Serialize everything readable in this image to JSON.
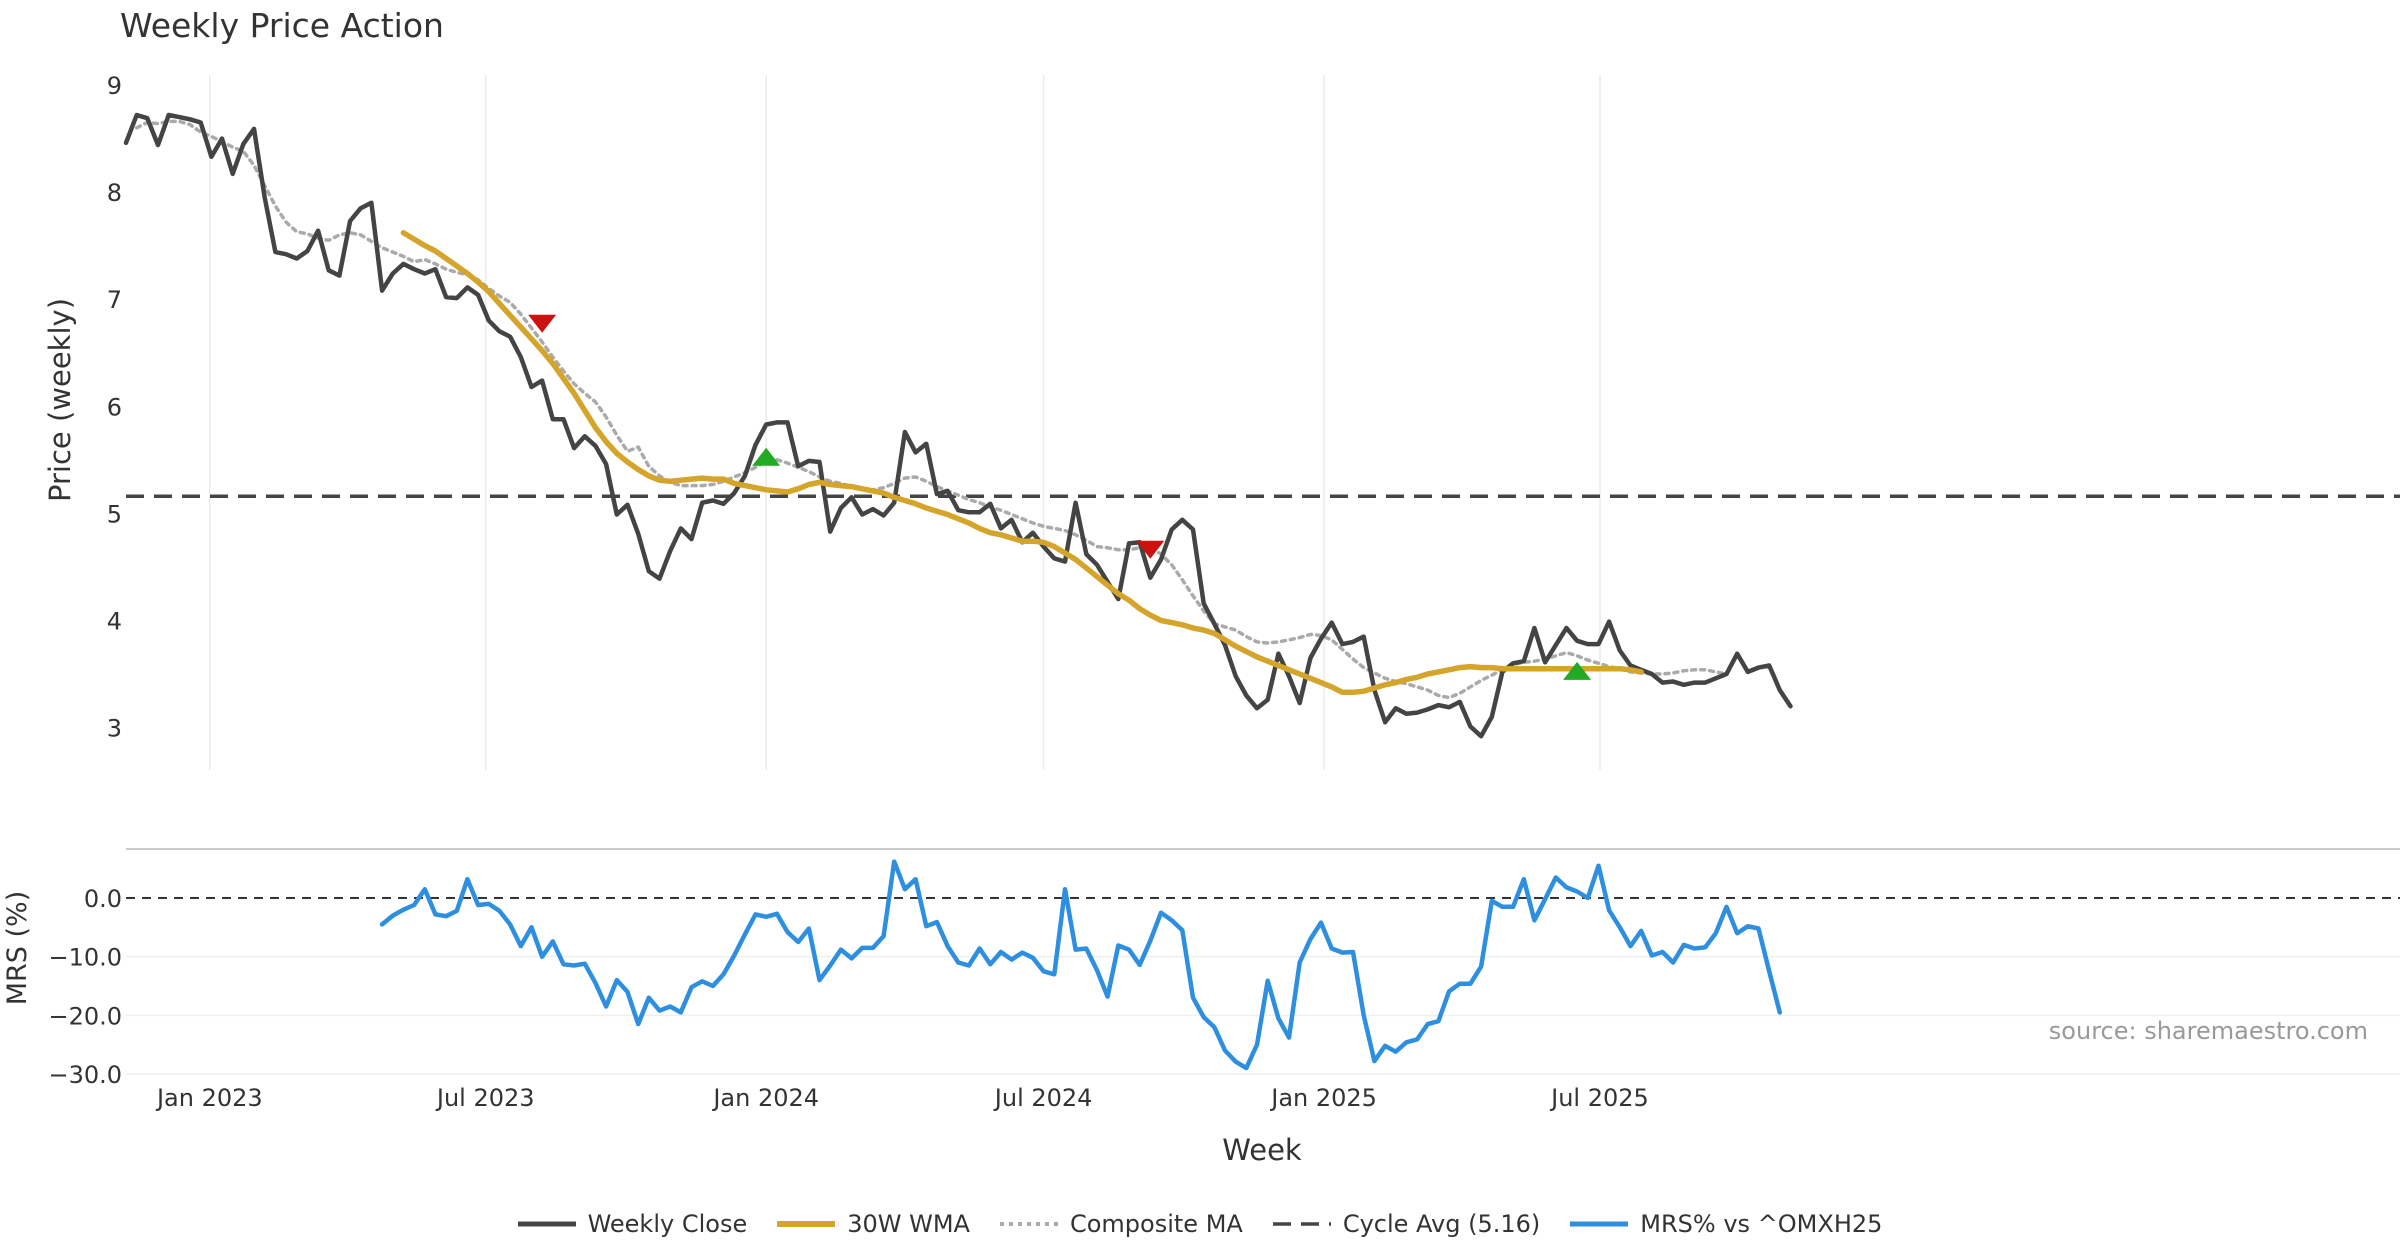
{
  "chart_data": [
    {
      "type": "line",
      "title": "Weekly Price Action",
      "ylabel": "Price (weekly)",
      "ylim": [
        2.55,
        9.0
      ],
      "yticks": [
        3,
        4,
        5,
        6,
        7,
        8,
        9
      ],
      "cycle_avg": 5.16,
      "series": [
        {
          "name": "Weekly Close",
          "color": "#444444",
          "start": "2022-11-07",
          "values": [
            8.46,
            8.72,
            8.69,
            8.44,
            8.72,
            8.7,
            8.68,
            8.65,
            8.33,
            8.5,
            8.17,
            8.45,
            8.59,
            7.95,
            7.44,
            7.42,
            7.38,
            7.45,
            7.64,
            7.27,
            7.22,
            7.73,
            7.85,
            7.9,
            7.08,
            7.24,
            7.33,
            7.28,
            7.24,
            7.28,
            7.02,
            7.01,
            7.11,
            7.04,
            6.8,
            6.7,
            6.65,
            6.46,
            6.18,
            6.24,
            5.88,
            5.88,
            5.61,
            5.72,
            5.63,
            5.46,
            4.99,
            5.08,
            4.81,
            4.46,
            4.39,
            4.65,
            4.86,
            4.76,
            5.1,
            5.12,
            5.09,
            5.19,
            5.35,
            5.64,
            5.83,
            5.85,
            5.85,
            5.44,
            5.49,
            5.48,
            4.83,
            5.05,
            5.15,
            4.99,
            5.04,
            4.98,
            5.1,
            5.76,
            5.57,
            5.65,
            5.18,
            5.21,
            5.03,
            5.01,
            5.01,
            5.09,
            4.86,
            4.94,
            4.73,
            4.82,
            4.69,
            4.58,
            4.55,
            5.1,
            4.62,
            4.52,
            4.36,
            4.2,
            4.72,
            4.73,
            4.4,
            4.57,
            4.85,
            4.94,
            4.85,
            4.16,
            3.97,
            3.77,
            3.48,
            3.3,
            3.18,
            3.26,
            3.69,
            3.48,
            3.23,
            3.65,
            3.83,
            3.98,
            3.78,
            3.8,
            3.85,
            3.35,
            3.05,
            3.18,
            3.13,
            3.14,
            3.17,
            3.21,
            3.19,
            3.24,
            3.01,
            2.92,
            3.1,
            3.52,
            3.6,
            3.62,
            3.93,
            3.61,
            3.77,
            3.93,
            3.81,
            3.78,
            3.78,
            3.99,
            3.72,
            3.58,
            3.54,
            3.5,
            3.42,
            3.43,
            3.4,
            3.42,
            3.42,
            3.46,
            3.5,
            3.69,
            3.52,
            3.56,
            3.58,
            3.35,
            3.2
          ]
        },
        {
          "name": "30W WMA",
          "color": "#d4a52a",
          "start": "2023-05-08",
          "values": [
            7.62,
            7.56,
            7.5,
            7.45,
            7.38,
            7.31,
            7.24,
            7.16,
            7.07,
            6.96,
            6.85,
            6.74,
            6.63,
            6.52,
            6.4,
            6.26,
            6.12,
            5.96,
            5.8,
            5.67,
            5.56,
            5.48,
            5.41,
            5.35,
            5.31,
            5.3,
            5.31,
            5.32,
            5.33,
            5.32,
            5.32,
            5.28,
            5.26,
            5.24,
            5.22,
            5.21,
            5.2,
            5.23,
            5.27,
            5.29,
            5.27,
            5.26,
            5.25,
            5.23,
            5.21,
            5.19,
            5.15,
            5.12,
            5.09,
            5.05,
            5.02,
            4.99,
            4.95,
            4.91,
            4.86,
            4.82,
            4.8,
            4.77,
            4.74,
            4.74,
            4.73,
            4.69,
            4.63,
            4.57,
            4.49,
            4.41,
            4.33,
            4.25,
            4.19,
            4.11,
            4.05,
            4.0,
            3.98,
            3.96,
            3.93,
            3.91,
            3.88,
            3.82,
            3.76,
            3.71,
            3.66,
            3.62,
            3.58,
            3.54,
            3.5,
            3.46,
            3.42,
            3.38,
            3.33,
            3.33,
            3.34,
            3.37,
            3.4,
            3.42,
            3.45,
            3.47,
            3.5,
            3.52,
            3.54,
            3.56,
            3.57,
            3.56,
            3.56,
            3.55,
            3.55,
            3.55,
            3.55,
            3.55,
            3.55,
            3.55,
            3.55,
            3.55,
            3.55,
            3.55,
            3.55,
            3.54,
            3.52
          ]
        },
        {
          "name": "Composite MA",
          "color": "#aaaaaa",
          "start": "2022-11-14",
          "values": [
            8.6,
            8.65,
            8.64,
            8.66,
            8.66,
            8.63,
            8.56,
            8.52,
            8.47,
            8.42,
            8.38,
            8.25,
            8.06,
            7.87,
            7.72,
            7.63,
            7.61,
            7.57,
            7.55,
            7.6,
            7.62,
            7.6,
            7.54,
            7.48,
            7.44,
            7.4,
            7.35,
            7.37,
            7.33,
            7.28,
            7.25,
            7.23,
            7.18,
            7.1,
            7.03,
            6.97,
            6.86,
            6.73,
            6.6,
            6.46,
            6.33,
            6.21,
            6.12,
            6.04,
            5.9,
            5.73,
            5.58,
            5.62,
            5.44,
            5.35,
            5.29,
            5.26,
            5.26,
            5.26,
            5.27,
            5.3,
            5.34,
            5.38,
            5.43,
            5.49,
            5.5,
            5.47,
            5.43,
            5.39,
            5.34,
            5.3,
            5.28,
            5.25,
            5.22,
            5.22,
            5.24,
            5.28,
            5.33,
            5.34,
            5.3,
            5.25,
            5.21,
            5.17,
            5.13,
            5.1,
            5.06,
            5.03,
            4.99,
            4.95,
            4.91,
            4.88,
            4.86,
            4.84,
            4.8,
            4.75,
            4.69,
            4.68,
            4.66,
            4.66,
            4.68,
            4.68,
            4.62,
            4.52,
            4.38,
            4.23,
            4.09,
            3.97,
            3.94,
            3.91,
            3.85,
            3.8,
            3.79,
            3.8,
            3.82,
            3.84,
            3.87,
            3.86,
            3.82,
            3.73,
            3.64,
            3.56,
            3.51,
            3.46,
            3.43,
            3.41,
            3.38,
            3.35,
            3.3,
            3.28,
            3.32,
            3.38,
            3.44,
            3.49,
            3.54,
            3.59,
            3.61,
            3.62,
            3.64,
            3.67,
            3.7,
            3.67,
            3.63,
            3.6,
            3.57,
            3.55,
            3.52,
            3.51,
            3.5,
            3.5,
            3.51,
            3.53,
            3.54,
            3.54,
            3.52,
            3.5
          ]
        }
      ],
      "signals": [
        {
          "type": "sell",
          "date": "2023-08-07",
          "value": 6.78,
          "color": "#cc1111"
        },
        {
          "type": "buy",
          "date": "2024-01-01",
          "value": 5.52,
          "color": "#22aa22"
        },
        {
          "type": "sell",
          "date": "2024-09-09",
          "value": 4.67,
          "color": "#cc1111"
        },
        {
          "type": "buy",
          "date": "2025-06-16",
          "value": 3.52,
          "color": "#22aa22"
        }
      ],
      "grid": "vertical"
    },
    {
      "type": "line",
      "ylabel": "MRS (%)",
      "ylim": [
        -30.0,
        8.0
      ],
      "yticks": [
        0.0,
        -10.0,
        -20.0,
        -30.0
      ],
      "ytick_labels": [
        "0.0",
        "−10.0",
        "−20.0",
        "−30.0"
      ],
      "xlabel": "Week",
      "xticks": [
        "2023-01-01",
        "2023-07-01",
        "2024-01-01",
        "2024-07-01",
        "2025-01-01",
        "2025-07-01"
      ],
      "xtick_labels": [
        "Jan 2023",
        "Jul 2023",
        "Jan 2024",
        "Jul 2024",
        "Jan 2025",
        "Jul 2025"
      ],
      "series": [
        {
          "name": "MRS% vs ^OMXH25",
          "color": "#2e8fe0",
          "start": "2023-04-24",
          "values": [
            -4.5,
            -3.0,
            -2.0,
            -1.2,
            1.5,
            -2.8,
            -3.1,
            -2.2,
            3.2,
            -1.2,
            -1.0,
            -2.2,
            -4.5,
            -8.2,
            -5.0,
            -10.0,
            -7.4,
            -11.3,
            -11.5,
            -11.2,
            -14.5,
            -18.5,
            -14.0,
            -16.0,
            -21.5,
            -17.0,
            -19.2,
            -18.5,
            -19.5,
            -15.2,
            -14.2,
            -15.0,
            -13.0,
            -9.8,
            -6.2,
            -2.8,
            -3.2,
            -2.7,
            -5.8,
            -7.5,
            -5.2,
            -14.0,
            -11.5,
            -8.8,
            -10.3,
            -8.5,
            -8.5,
            -6.5,
            6.2,
            1.5,
            3.2,
            -4.8,
            -4.1,
            -8.2,
            -11.0,
            -11.5,
            -8.6,
            -11.3,
            -9.2,
            -10.5,
            -9.3,
            -10.2,
            -12.5,
            -13.0,
            1.5,
            -8.8,
            -8.6,
            -12.3,
            -16.8,
            -8.1,
            -8.8,
            -11.4,
            -7.3,
            -2.5,
            -3.8,
            -5.5,
            -17.0,
            -20.3,
            -22.0,
            -26.0,
            -27.9,
            -29.0,
            -25.0,
            -14.1,
            -20.5,
            -23.8,
            -11.0,
            -7.0,
            -4.2,
            -8.6,
            -9.3,
            -9.2,
            -20.0,
            -27.8,
            -25.2,
            -26.2,
            -24.6,
            -24.1,
            -21.5,
            -21.0,
            -15.9,
            -14.6,
            -14.6,
            -11.7,
            -0.5,
            -1.5,
            -1.5,
            3.2,
            -3.8,
            -0.2,
            3.5,
            1.8,
            1.1,
            0.0,
            5.5,
            -2.1,
            -5.0,
            -8.2,
            -5.6,
            -9.8,
            -9.2,
            -11.0,
            -8.0,
            -8.6,
            -8.4,
            -6.0,
            -1.5,
            -6.0,
            -4.8,
            -5.2,
            -12.5,
            -19.5
          ]
        }
      ],
      "annotation": "source: sharemaestro.com"
    }
  ],
  "legend": [
    {
      "label": "Weekly Close",
      "color": "#444444",
      "style": "solid"
    },
    {
      "label": "30W WMA",
      "color": "#d4a52a",
      "style": "solid-thick"
    },
    {
      "label": "Composite MA",
      "color": "#aaaaaa",
      "style": "dotted"
    },
    {
      "label": "Cycle Avg (5.16)",
      "color": "#444444",
      "style": "dashed"
    },
    {
      "label": "MRS% vs ^OMXH25",
      "color": "#2e8fe0",
      "style": "solid"
    }
  ]
}
